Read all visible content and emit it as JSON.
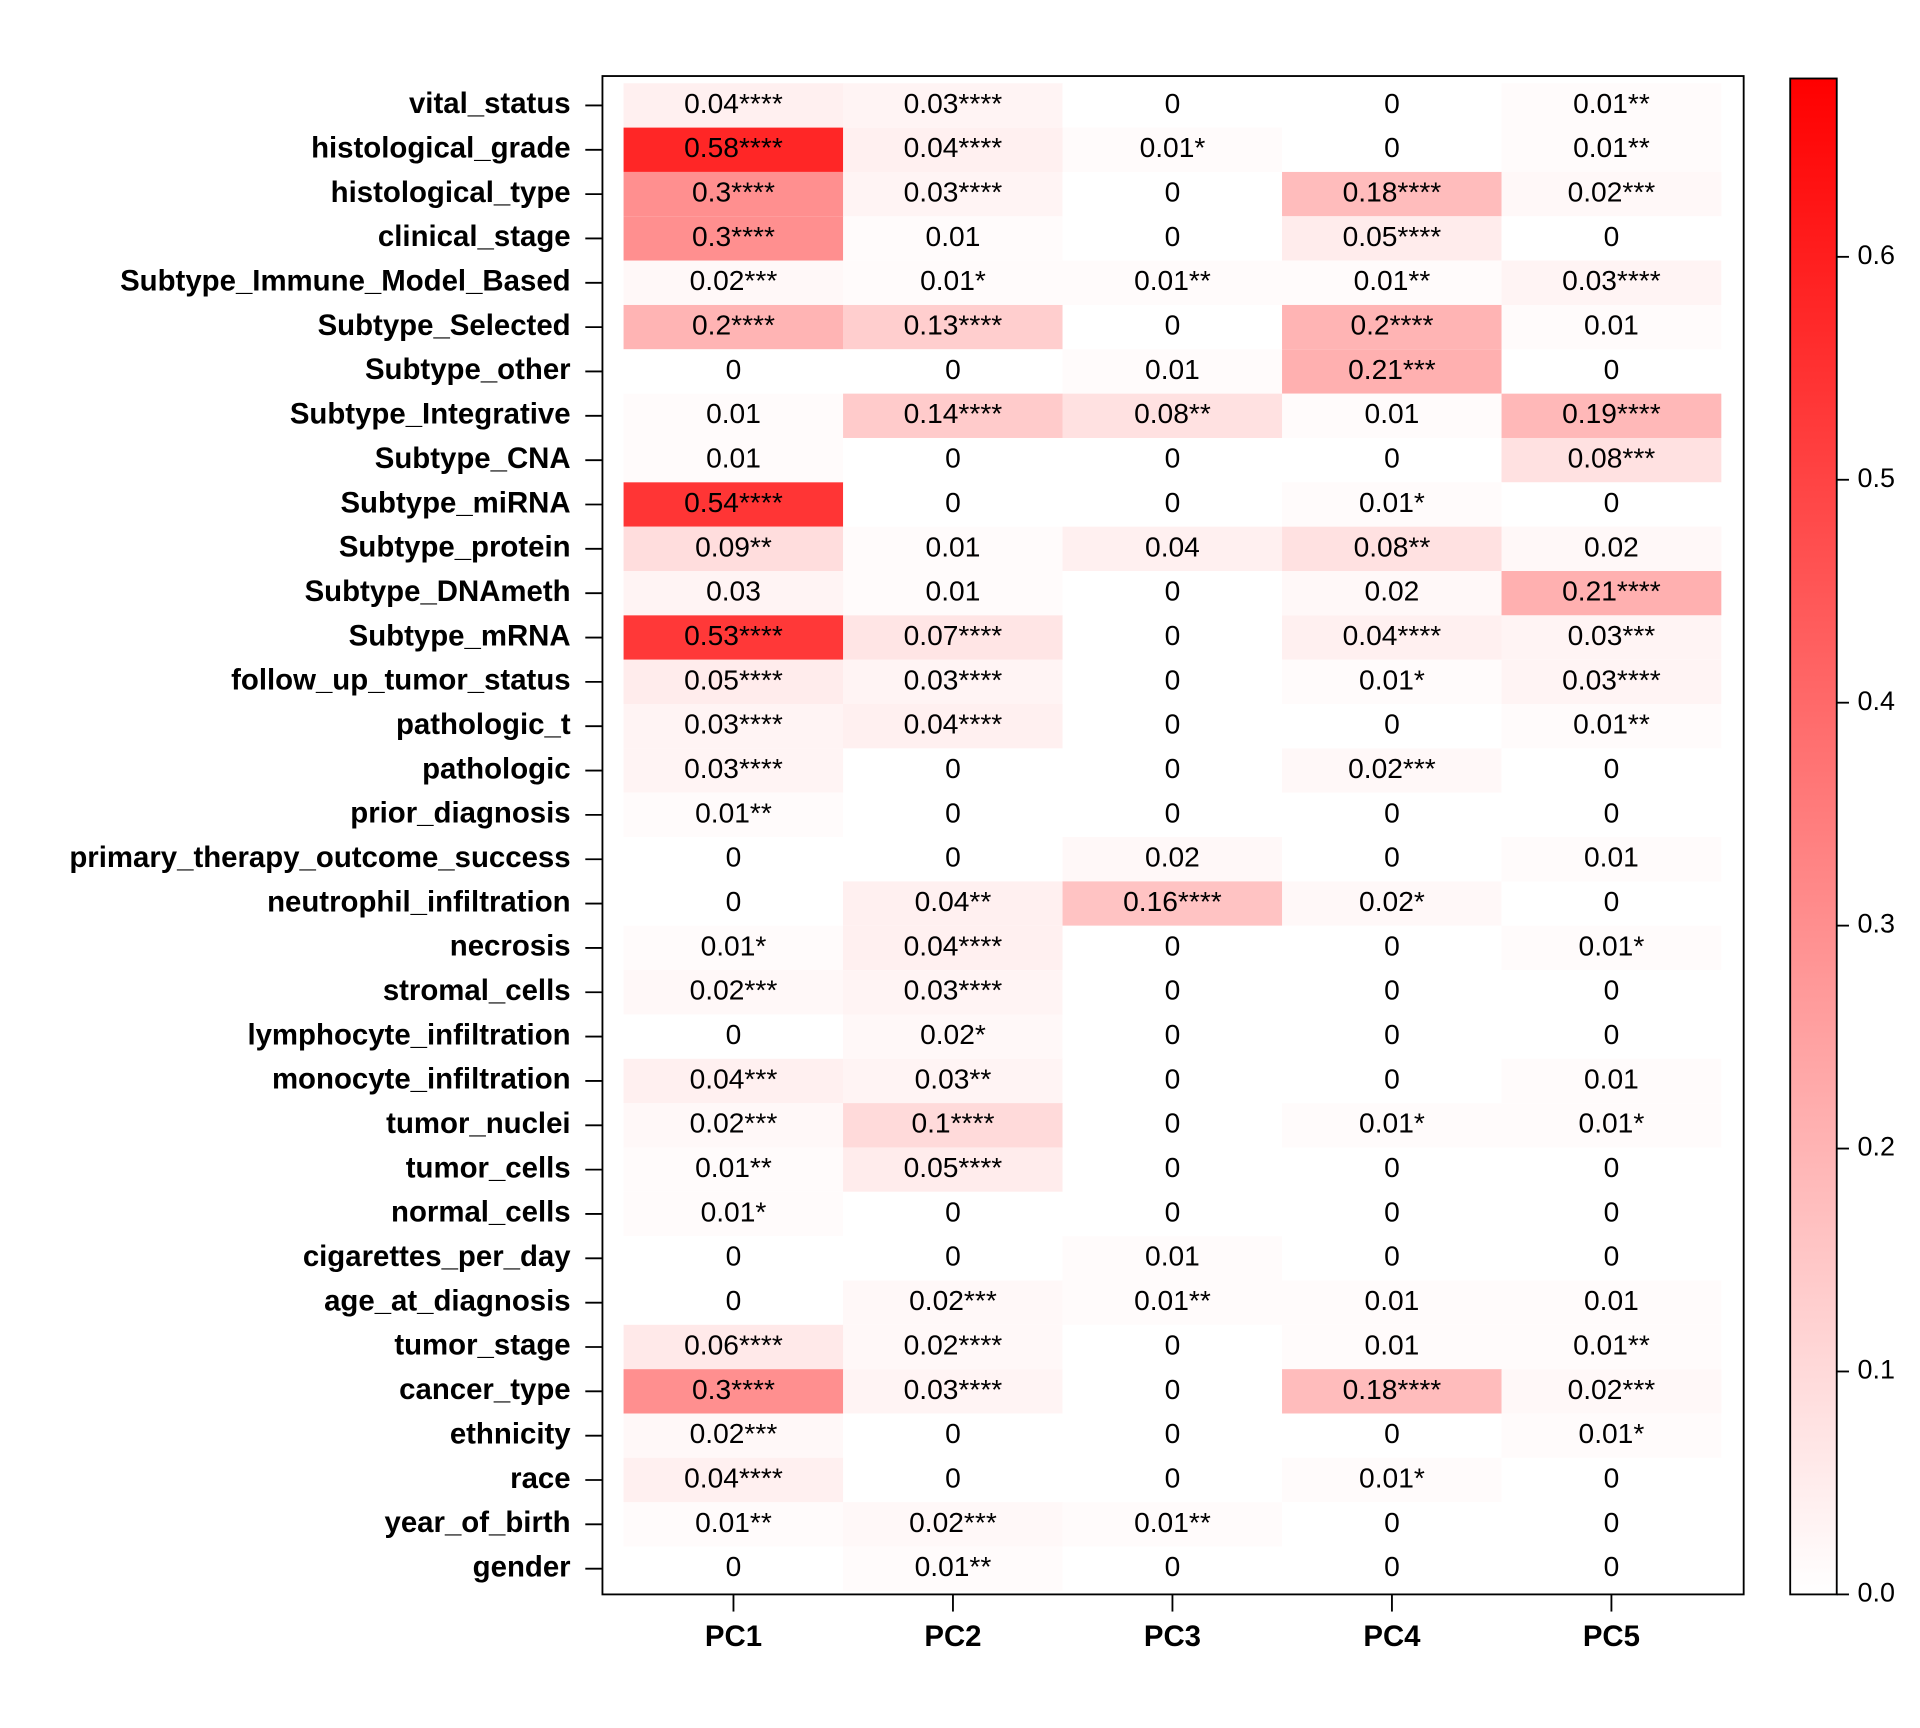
{
  "chart_data": {
    "type": "heatmap",
    "rows": [
      "vital_status",
      "histological_grade",
      "histological_type",
      "clinical_stage",
      "Subtype_Immune_Model_Based",
      "Subtype_Selected",
      "Subtype_other",
      "Subtype_Integrative",
      "Subtype_CNA",
      "Subtype_miRNA",
      "Subtype_protein",
      "Subtype_DNAmeth",
      "Subtype_mRNA",
      "follow_up_tumor_status",
      "pathologic_t",
      "pathologic",
      "prior_diagnosis",
      "primary_therapy_outcome_success",
      "neutrophil_infiltration",
      "necrosis",
      "stromal_cells",
      "lymphocyte_infiltration",
      "monocyte_infiltration",
      "tumor_nuclei",
      "tumor_cells",
      "normal_cells",
      "cigarettes_per_day",
      "age_at_diagnosis",
      "tumor_stage",
      "cancer_type",
      "ethnicity",
      "race",
      "year_of_birth",
      "gender"
    ],
    "columns": [
      "PC1",
      "PC2",
      "PC3",
      "PC4",
      "PC5"
    ],
    "values": [
      [
        0.04,
        0.03,
        0,
        0,
        0.01
      ],
      [
        0.58,
        0.04,
        0.01,
        0,
        0.01
      ],
      [
        0.3,
        0.03,
        0,
        0.18,
        0.02
      ],
      [
        0.3,
        0.01,
        0,
        0.05,
        0
      ],
      [
        0.02,
        0.01,
        0.01,
        0.01,
        0.03
      ],
      [
        0.2,
        0.13,
        0,
        0.2,
        0.01
      ],
      [
        0,
        0,
        0.01,
        0.21,
        0
      ],
      [
        0.01,
        0.14,
        0.08,
        0.01,
        0.19
      ],
      [
        0.01,
        0,
        0,
        0,
        0.08
      ],
      [
        0.54,
        0,
        0,
        0.01,
        0
      ],
      [
        0.09,
        0.01,
        0.04,
        0.08,
        0.02
      ],
      [
        0.03,
        0.01,
        0,
        0.02,
        0.21
      ],
      [
        0.53,
        0.07,
        0,
        0.04,
        0.03
      ],
      [
        0.05,
        0.03,
        0,
        0.01,
        0.03
      ],
      [
        0.03,
        0.04,
        0,
        0,
        0.01
      ],
      [
        0.03,
        0,
        0,
        0.02,
        0
      ],
      [
        0.01,
        0,
        0,
        0,
        0
      ],
      [
        0,
        0,
        0.02,
        0,
        0.01
      ],
      [
        0,
        0.04,
        0.16,
        0.02,
        0
      ],
      [
        0.01,
        0.04,
        0,
        0,
        0.01
      ],
      [
        0.02,
        0.03,
        0,
        0,
        0
      ],
      [
        0,
        0.02,
        0,
        0,
        0
      ],
      [
        0.04,
        0.03,
        0,
        0,
        0.01
      ],
      [
        0.02,
        0.1,
        0,
        0.01,
        0.01
      ],
      [
        0.01,
        0.05,
        0,
        0,
        0
      ],
      [
        0.01,
        0,
        0,
        0,
        0
      ],
      [
        0,
        0,
        0.01,
        0,
        0
      ],
      [
        0,
        0.02,
        0.01,
        0.01,
        0.01
      ],
      [
        0.06,
        0.02,
        0,
        0.01,
        0.01
      ],
      [
        0.3,
        0.03,
        0,
        0.18,
        0.02
      ],
      [
        0.02,
        0,
        0,
        0,
        0.01
      ],
      [
        0.04,
        0,
        0,
        0.01,
        0
      ],
      [
        0.01,
        0.02,
        0.01,
        0,
        0
      ],
      [
        0,
        0.01,
        0,
        0,
        0
      ]
    ],
    "value_labels": [
      [
        "0.04****",
        "0.03****",
        "0",
        "0",
        "0.01**"
      ],
      [
        "0.58****",
        "0.04****",
        "0.01*",
        "0",
        "0.01**"
      ],
      [
        "0.3****",
        "0.03****",
        "0",
        "0.18****",
        "0.02***"
      ],
      [
        "0.3****",
        "0.01",
        "0",
        "0.05****",
        "0"
      ],
      [
        "0.02***",
        "0.01*",
        "0.01**",
        "0.01**",
        "0.03****"
      ],
      [
        "0.2****",
        "0.13****",
        "0",
        "0.2****",
        "0.01"
      ],
      [
        "0",
        "0",
        "0.01",
        "0.21***",
        "0"
      ],
      [
        "0.01",
        "0.14****",
        "0.08**",
        "0.01",
        "0.19****"
      ],
      [
        "0.01",
        "0",
        "0",
        "0",
        "0.08***"
      ],
      [
        "0.54****",
        "0",
        "0",
        "0.01*",
        "0"
      ],
      [
        "0.09**",
        "0.01",
        "0.04",
        "0.08**",
        "0.02"
      ],
      [
        "0.03",
        "0.01",
        "0",
        "0.02",
        "0.21****"
      ],
      [
        "0.53****",
        "0.07****",
        "0",
        "0.04****",
        "0.03***"
      ],
      [
        "0.05****",
        "0.03****",
        "0",
        "0.01*",
        "0.03****"
      ],
      [
        "0.03****",
        "0.04****",
        "0",
        "0",
        "0.01**"
      ],
      [
        "0.03****",
        "0",
        "0",
        "0.02***",
        "0"
      ],
      [
        "0.01**",
        "0",
        "0",
        "0",
        "0"
      ],
      [
        "0",
        "0",
        "0.02",
        "0",
        "0.01"
      ],
      [
        "0",
        "0.04**",
        "0.16****",
        "0.02*",
        "0"
      ],
      [
        "0.01*",
        "0.04****",
        "0",
        "0",
        "0.01*"
      ],
      [
        "0.02***",
        "0.03****",
        "0",
        "0",
        "0"
      ],
      [
        "0",
        "0.02*",
        "0",
        "0",
        "0"
      ],
      [
        "0.04***",
        "0.03**",
        "0",
        "0",
        "0.01"
      ],
      [
        "0.02***",
        "0.1****",
        "0",
        "0.01*",
        "0.01*"
      ],
      [
        "0.01**",
        "0.05****",
        "0",
        "0",
        "0"
      ],
      [
        "0.01*",
        "0",
        "0",
        "0",
        "0"
      ],
      [
        "0",
        "0",
        "0.01",
        "0",
        "0"
      ],
      [
        "0",
        "0.02***",
        "0.01**",
        "0.01",
        "0.01"
      ],
      [
        "0.06****",
        "0.02****",
        "0",
        "0.01",
        "0.01**"
      ],
      [
        "0.3****",
        "0.03****",
        "0",
        "0.18****",
        "0.02***"
      ],
      [
        "0.02***",
        "0",
        "0",
        "0",
        "0.01*"
      ],
      [
        "0.04****",
        "0",
        "0",
        "0.01*",
        "0"
      ],
      [
        "0.01**",
        "0.02***",
        "0.01**",
        "0",
        "0"
      ],
      [
        "0",
        "0.01**",
        "0",
        "0",
        "0"
      ]
    ],
    "zlim": [
      0,
      0.68
    ],
    "zticks": [
      {
        "value": 0,
        "label": "0.0"
      },
      0.1,
      0.2,
      0.3,
      0.4,
      0.5,
      0.6
    ],
    "color_low": "#ffffff",
    "color_high": "#ff0000"
  }
}
